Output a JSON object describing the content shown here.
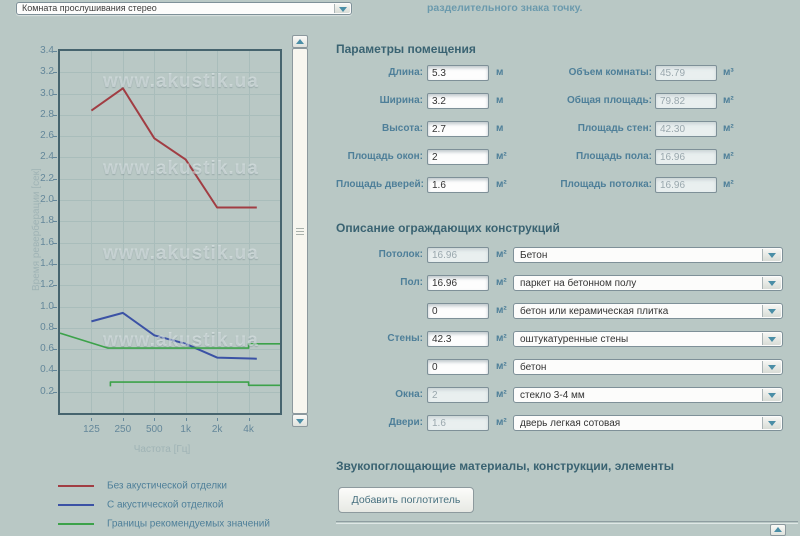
{
  "colors": {
    "background": "#b9c8c5",
    "accent_label": "#4e7f99",
    "heading": "#3a6372",
    "note": "#6b9aad",
    "grid": "#a9bdbb",
    "plot_border": "#46646e",
    "series_red": "#a13d43",
    "series_blue": "#3b52a5",
    "series_green": "#3ca24a"
  },
  "top": {
    "room_preset": "Комната прослушивания стерео",
    "note": "разделительного знака точку."
  },
  "chart_data": {
    "type": "line",
    "xlabel": "Частота [Гц]",
    "ylabel": "Время реверберации [сек]",
    "x_scale": "log2-octaves",
    "xlim_freq": [
      62.5,
      8000
    ],
    "ylim": [
      0,
      3.4
    ],
    "grid": true,
    "legend_position": "below",
    "watermark": "www.akustik.ua",
    "x_ticks": [
      {
        "label": "125",
        "f": 125
      },
      {
        "label": "250",
        "f": 250
      },
      {
        "label": "500",
        "f": 500
      },
      {
        "label": "1k",
        "f": 1000
      },
      {
        "label": "2k",
        "f": 2000
      },
      {
        "label": "4k",
        "f": 4000
      }
    ],
    "y_ticks": [
      0.2,
      0.4,
      0.6,
      0.8,
      1.0,
      1.2,
      1.4,
      1.6,
      1.8,
      2.0,
      2.2,
      2.4,
      2.6,
      2.8,
      3.0,
      3.2,
      3.4
    ],
    "series": [
      {
        "name": "Без акустической отделки",
        "color": "#a13d43",
        "width": 2,
        "points": [
          [
            125,
            2.84
          ],
          [
            250,
            3.05
          ],
          [
            500,
            2.58
          ],
          [
            1000,
            2.38
          ],
          [
            2000,
            1.93
          ],
          [
            4800,
            1.93
          ]
        ]
      },
      {
        "name": "С акустической отделкой",
        "color": "#3b52a5",
        "width": 2,
        "points": [
          [
            125,
            0.86
          ],
          [
            250,
            0.94
          ],
          [
            500,
            0.73
          ],
          [
            1000,
            0.65
          ],
          [
            2000,
            0.52
          ],
          [
            4800,
            0.51
          ]
        ]
      },
      {
        "name": "Границы рекомендуемых значений (верхняя)",
        "color": "#3ca24a",
        "width": 1.6,
        "points": [
          [
            62.5,
            0.75
          ],
          [
            180,
            0.61
          ],
          [
            4000,
            0.61
          ],
          [
            4000,
            0.65
          ],
          [
            8000,
            0.65
          ]
        ]
      },
      {
        "name": "Границы рекомендуемых значений (нижняя)",
        "color": "#3ca24a",
        "width": 1.6,
        "points": [
          [
            190,
            0.25
          ],
          [
            190,
            0.29
          ],
          [
            4000,
            0.29
          ],
          [
            4000,
            0.26
          ],
          [
            8000,
            0.26
          ]
        ]
      }
    ],
    "legend": [
      {
        "label": "Без акустической отделки",
        "color": "#a13d43"
      },
      {
        "label": "С акустической отделкой",
        "color": "#3b52a5"
      },
      {
        "label": "Границы рекомендуемых значений",
        "color": "#3ca24a"
      }
    ]
  },
  "sections": {
    "room": {
      "heading": "Параметры помещения",
      "left_rows": [
        {
          "key": "length",
          "label": "Длина:",
          "value": "5.3",
          "unit": "м",
          "disabled": false
        },
        {
          "key": "width",
          "label": "Ширина:",
          "value": "3.2",
          "unit": "м",
          "disabled": false
        },
        {
          "key": "height",
          "label": "Высота:",
          "value": "2.7",
          "unit": "м",
          "disabled": false
        },
        {
          "key": "windows-area",
          "label": "Площадь окон:",
          "value": "2",
          "unit": "м²",
          "disabled": false
        },
        {
          "key": "doors-area",
          "label": "Площадь дверей:",
          "value": "1.6",
          "unit": "м²",
          "disabled": false
        }
      ],
      "right_rows": [
        {
          "key": "room-volume",
          "label": "Объем комнаты:",
          "value": "45.79",
          "unit": "м³",
          "disabled": true
        },
        {
          "key": "total-area",
          "label": "Общая площадь:",
          "value": "79.82",
          "unit": "м²",
          "disabled": true
        },
        {
          "key": "walls-area",
          "label": "Площадь стен:",
          "value": "42.30",
          "unit": "м²",
          "disabled": true
        },
        {
          "key": "floor-area",
          "label": "Площадь пола:",
          "value": "16.96",
          "unit": "м²",
          "disabled": true
        },
        {
          "key": "ceiling-area",
          "label": "Площадь потолка:",
          "value": "16.96",
          "unit": "м²",
          "disabled": true
        }
      ]
    },
    "constructions": {
      "heading": "Описание ограждающих конструкций",
      "rows": [
        {
          "key": "ceiling",
          "label": "Потолок:",
          "value": "16.96",
          "unit": "м²",
          "disabled": true,
          "material": "Бетон"
        },
        {
          "key": "floor-1",
          "label": "Пол:",
          "value": "16.96",
          "unit": "м²",
          "disabled": false,
          "material": "паркет на бетонном полу"
        },
        {
          "key": "floor-2",
          "label": "",
          "value": "0",
          "unit": "м²",
          "disabled": false,
          "material": "бетон или керамическая плитка"
        },
        {
          "key": "walls-1",
          "label": "Стены:",
          "value": "42.3",
          "unit": "м²",
          "disabled": false,
          "material": "оштукатуренные стены"
        },
        {
          "key": "walls-2",
          "label": "",
          "value": "0",
          "unit": "м²",
          "disabled": false,
          "material": "бетон"
        },
        {
          "key": "windows",
          "label": "Окна:",
          "value": "2",
          "unit": "м²",
          "disabled": true,
          "material": "стекло 3-4 мм"
        },
        {
          "key": "doors",
          "label": "Двери:",
          "value": "1.6",
          "unit": "м²",
          "disabled": true,
          "material": "дверь легкая сотовая"
        }
      ]
    },
    "absorbers": {
      "heading": "Звукопоглощающие материалы, конструкции, элементы",
      "button": "Добавить поглотитель"
    }
  }
}
